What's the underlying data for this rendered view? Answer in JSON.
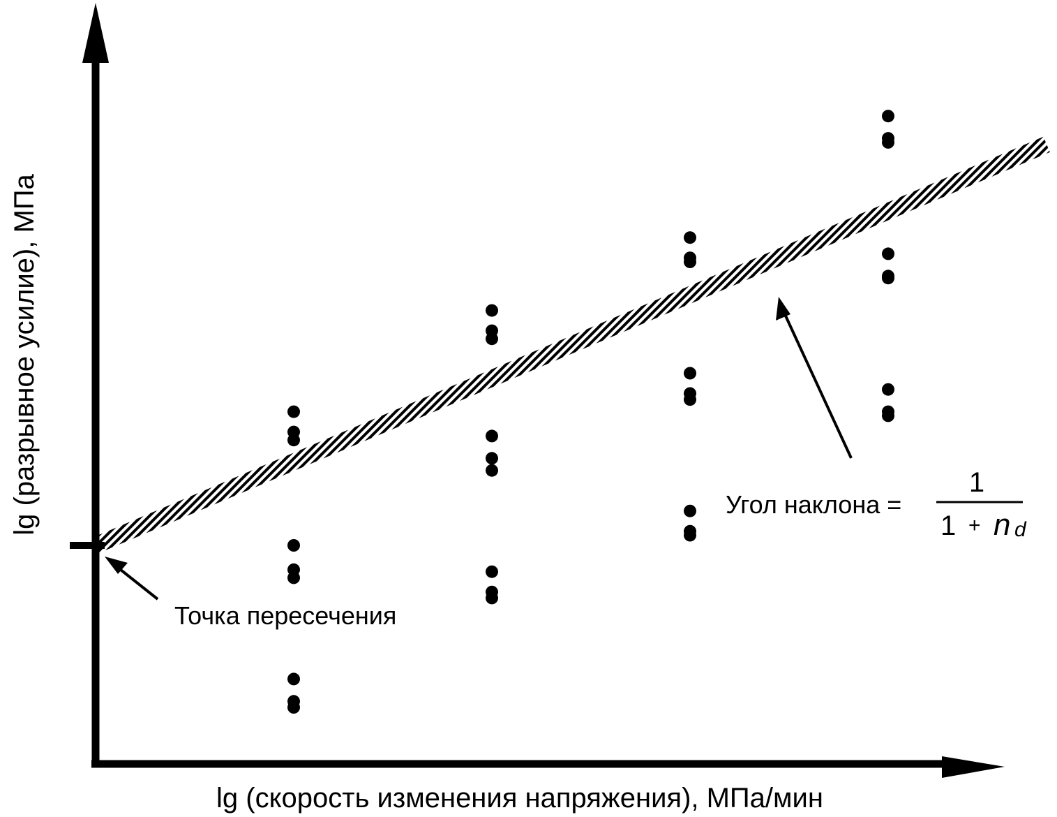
{
  "chart_data": {
    "type": "scatter",
    "xlabel": "lg (скорость изменения напряжения), МПа/мин",
    "ylabel": "lg (разрывное усилие), МПа",
    "xlim": [
      0,
      5
    ],
    "ylim": [
      -1.2,
      3.3
    ],
    "grid": false,
    "legend": "none",
    "series": [
      {
        "points": [
          {
            "x": 1,
            "y": 0.66
          },
          {
            "x": 1,
            "y": 0.56
          },
          {
            "x": 1,
            "y": 0.52
          },
          {
            "x": 1,
            "y": 0.0
          },
          {
            "x": 1,
            "y": -0.12
          },
          {
            "x": 1,
            "y": -0.16
          },
          {
            "x": 1,
            "y": -0.66
          },
          {
            "x": 1,
            "y": -0.77
          },
          {
            "x": 1,
            "y": -0.8
          },
          {
            "x": 2,
            "y": 1.16
          },
          {
            "x": 2,
            "y": 1.06
          },
          {
            "x": 2,
            "y": 1.02
          },
          {
            "x": 2,
            "y": 0.54
          },
          {
            "x": 2,
            "y": 0.43
          },
          {
            "x": 2,
            "y": 0.37
          },
          {
            "x": 2,
            "y": -0.13
          },
          {
            "x": 2,
            "y": -0.23
          },
          {
            "x": 2,
            "y": -0.26
          },
          {
            "x": 3,
            "y": 1.52
          },
          {
            "x": 3,
            "y": 1.42
          },
          {
            "x": 3,
            "y": 1.4
          },
          {
            "x": 3,
            "y": 0.85
          },
          {
            "x": 3,
            "y": 0.75
          },
          {
            "x": 3,
            "y": 0.72
          },
          {
            "x": 3,
            "y": 0.17
          },
          {
            "x": 3,
            "y": 0.07
          },
          {
            "x": 3,
            "y": 0.05
          },
          {
            "x": 4,
            "y": 2.12
          },
          {
            "x": 4,
            "y": 2.01
          },
          {
            "x": 4,
            "y": 1.99
          },
          {
            "x": 4,
            "y": 1.44
          },
          {
            "x": 4,
            "y": 1.33
          },
          {
            "x": 4,
            "y": 1.32
          },
          {
            "x": 4,
            "y": 0.77
          },
          {
            "x": 4,
            "y": 0.66
          },
          {
            "x": 4,
            "y": 0.64
          }
        ]
      }
    ],
    "fit_line": {
      "x": [
        0,
        4.8
      ],
      "y": [
        0,
        1.98
      ]
    },
    "annotations": {
      "intercept": "Точка пересечения",
      "slope_label": "Угол наклона =",
      "slope_numerator": "1",
      "slope_denominator_one": "1",
      "slope_denominator_plus": "+",
      "slope_denominator_n": "n",
      "slope_denominator_sub": "d"
    }
  },
  "colors": {
    "ink": "#000000",
    "background": "#ffffff"
  }
}
